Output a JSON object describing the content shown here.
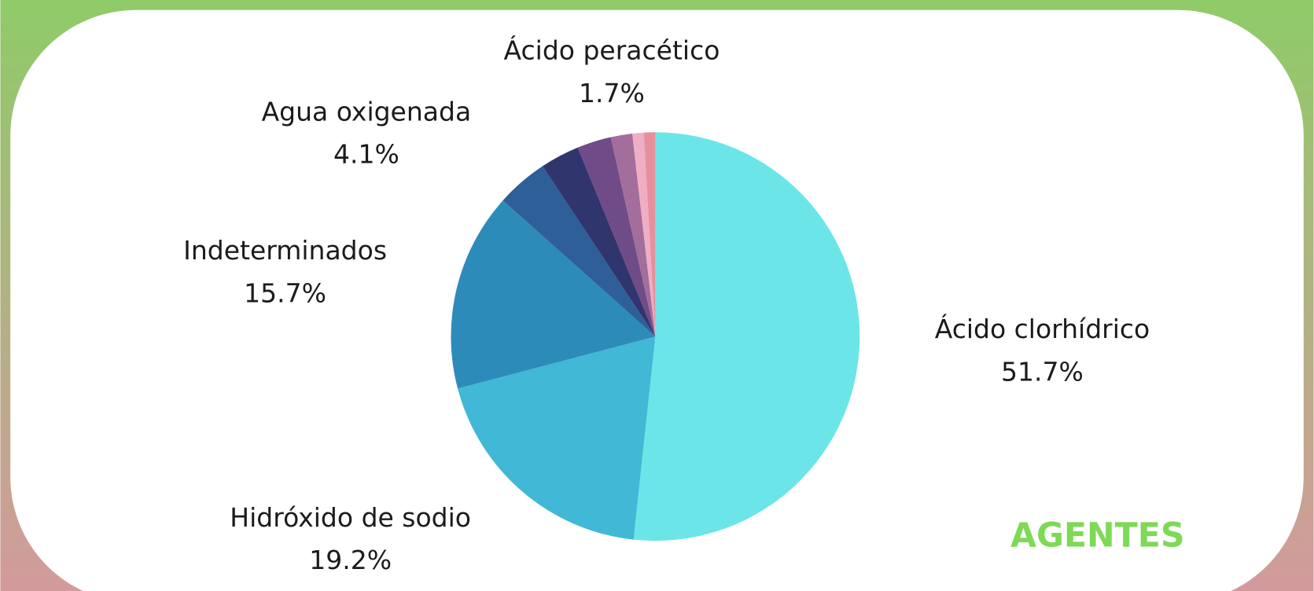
{
  "chart_data": {
    "type": "pie",
    "title": "AGENTES",
    "categories": [
      "Ácido clorhídrico",
      "Hidróxido de sodio",
      "Indeterminados",
      "Agua oxigenada",
      null,
      null,
      "Ácido peracético",
      null,
      null
    ],
    "values": [
      51.7,
      19.2,
      15.7,
      4.1,
      3.1,
      2.7,
      1.7,
      0.9,
      0.9
    ],
    "value_labels": [
      "51.7%",
      "19.2%",
      "15.7%",
      "4.1%",
      null,
      null,
      "1.7%",
      null,
      null
    ],
    "colors": [
      "#6ce5e8",
      "#41b8d5",
      "#2d8bba",
      "#2f5f98",
      "#31356e",
      "#6f4b87",
      "#a36e9b",
      "#f0aec4",
      "#e6909e"
    ]
  }
}
